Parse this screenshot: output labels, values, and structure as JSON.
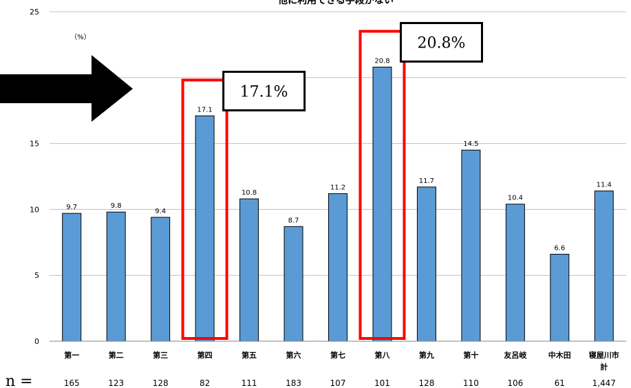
{
  "chart_data": {
    "type": "bar",
    "title": "他に利用できる手段がない",
    "unit_label": "（%）",
    "categories": [
      "第一",
      "第二",
      "第三",
      "第四",
      "第五",
      "第六",
      "第七",
      "第八",
      "第九",
      "第十",
      "友呂岐",
      "中木田",
      "寝屋川市計"
    ],
    "category_lines": [
      [
        "第一"
      ],
      [
        "第二"
      ],
      [
        "第三"
      ],
      [
        "第四"
      ],
      [
        "第五"
      ],
      [
        "第六"
      ],
      [
        "第七"
      ],
      [
        "第八"
      ],
      [
        "第九"
      ],
      [
        "第十"
      ],
      [
        "友呂岐"
      ],
      [
        "中木田"
      ],
      [
        "寝屋川市",
        "計"
      ]
    ],
    "values": [
      9.7,
      9.8,
      9.4,
      17.1,
      10.8,
      8.7,
      11.2,
      20.8,
      11.7,
      14.5,
      10.4,
      6.6,
      11.4
    ],
    "value_labels": [
      "9.7",
      "9.8",
      "9.4",
      "17.1",
      "10.8",
      "8.7",
      "11.2",
      "20.8",
      "11.7",
      "14.5",
      "10.4",
      "6.6",
      "11.4"
    ],
    "ylim": [
      0,
      25
    ],
    "yticks": [
      0,
      5,
      10,
      15,
      20,
      25
    ],
    "grid": true,
    "n_label": "n =",
    "n_values": [
      "165",
      "123",
      "128",
      "82",
      "111",
      "183",
      "107",
      "101",
      "128",
      "110",
      "106",
      "61",
      "1,447"
    ],
    "highlights": [
      {
        "category_index": 3,
        "label": "17.1%"
      },
      {
        "category_index": 7,
        "label": "20.8%"
      }
    ],
    "colors": {
      "bar": "#5B9BD5",
      "bar_edge": "#000000",
      "grid": "#BFBFBF",
      "highlight": "#FF0000",
      "arrow": "#000000"
    }
  }
}
